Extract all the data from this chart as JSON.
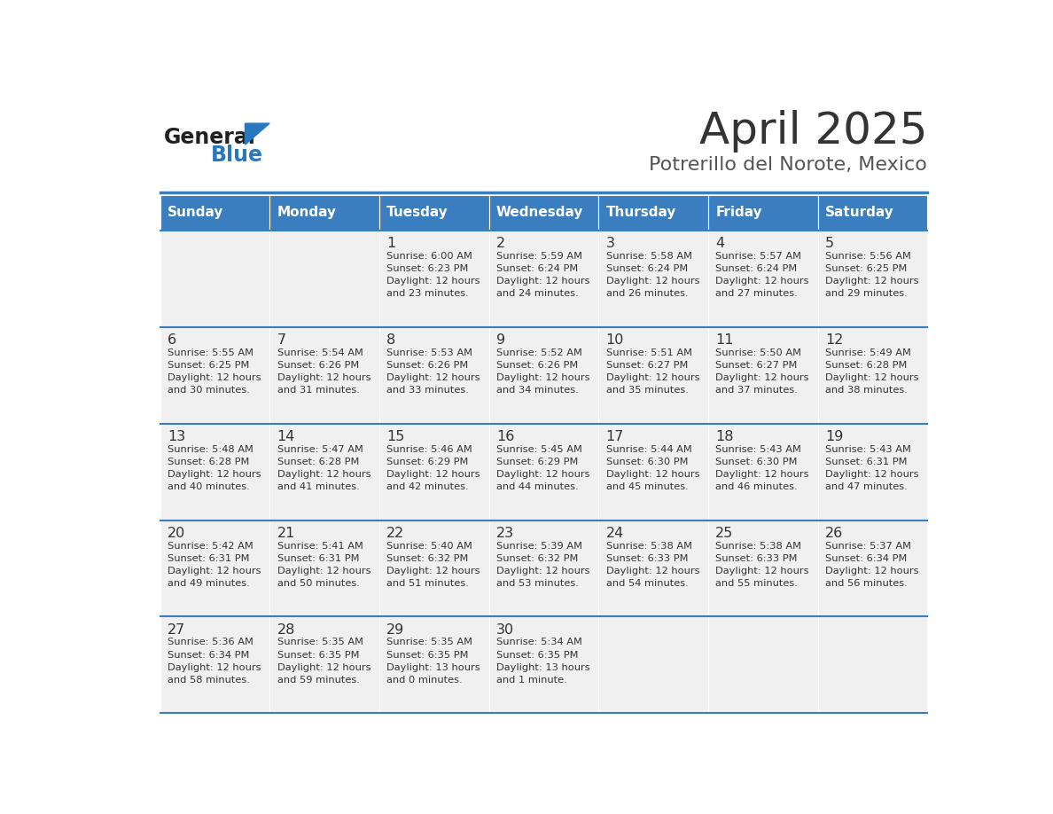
{
  "title": "April 2025",
  "subtitle": "Potrerillo del Norote, Mexico",
  "header_bg": "#3a7ebf",
  "header_text_color": "#ffffff",
  "cell_bg_light": "#f0f0f0",
  "day_names": [
    "Sunday",
    "Monday",
    "Tuesday",
    "Wednesday",
    "Thursday",
    "Friday",
    "Saturday"
  ],
  "title_color": "#333333",
  "subtitle_color": "#555555",
  "line_color": "#3a7ebf",
  "text_color": "#333333",
  "logo_general_color": "#222222",
  "logo_blue_color": "#2878c0",
  "weeks": [
    [
      {
        "day": null,
        "sunrise": null,
        "sunset": null,
        "daylight": null
      },
      {
        "day": null,
        "sunrise": null,
        "sunset": null,
        "daylight": null
      },
      {
        "day": 1,
        "sunrise": "6:00 AM",
        "sunset": "6:23 PM",
        "daylight": "12 hours\nand 23 minutes."
      },
      {
        "day": 2,
        "sunrise": "5:59 AM",
        "sunset": "6:24 PM",
        "daylight": "12 hours\nand 24 minutes."
      },
      {
        "day": 3,
        "sunrise": "5:58 AM",
        "sunset": "6:24 PM",
        "daylight": "12 hours\nand 26 minutes."
      },
      {
        "day": 4,
        "sunrise": "5:57 AM",
        "sunset": "6:24 PM",
        "daylight": "12 hours\nand 27 minutes."
      },
      {
        "day": 5,
        "sunrise": "5:56 AM",
        "sunset": "6:25 PM",
        "daylight": "12 hours\nand 29 minutes."
      }
    ],
    [
      {
        "day": 6,
        "sunrise": "5:55 AM",
        "sunset": "6:25 PM",
        "daylight": "12 hours\nand 30 minutes."
      },
      {
        "day": 7,
        "sunrise": "5:54 AM",
        "sunset": "6:26 PM",
        "daylight": "12 hours\nand 31 minutes."
      },
      {
        "day": 8,
        "sunrise": "5:53 AM",
        "sunset": "6:26 PM",
        "daylight": "12 hours\nand 33 minutes."
      },
      {
        "day": 9,
        "sunrise": "5:52 AM",
        "sunset": "6:26 PM",
        "daylight": "12 hours\nand 34 minutes."
      },
      {
        "day": 10,
        "sunrise": "5:51 AM",
        "sunset": "6:27 PM",
        "daylight": "12 hours\nand 35 minutes."
      },
      {
        "day": 11,
        "sunrise": "5:50 AM",
        "sunset": "6:27 PM",
        "daylight": "12 hours\nand 37 minutes."
      },
      {
        "day": 12,
        "sunrise": "5:49 AM",
        "sunset": "6:28 PM",
        "daylight": "12 hours\nand 38 minutes."
      }
    ],
    [
      {
        "day": 13,
        "sunrise": "5:48 AM",
        "sunset": "6:28 PM",
        "daylight": "12 hours\nand 40 minutes."
      },
      {
        "day": 14,
        "sunrise": "5:47 AM",
        "sunset": "6:28 PM",
        "daylight": "12 hours\nand 41 minutes."
      },
      {
        "day": 15,
        "sunrise": "5:46 AM",
        "sunset": "6:29 PM",
        "daylight": "12 hours\nand 42 minutes."
      },
      {
        "day": 16,
        "sunrise": "5:45 AM",
        "sunset": "6:29 PM",
        "daylight": "12 hours\nand 44 minutes."
      },
      {
        "day": 17,
        "sunrise": "5:44 AM",
        "sunset": "6:30 PM",
        "daylight": "12 hours\nand 45 minutes."
      },
      {
        "day": 18,
        "sunrise": "5:43 AM",
        "sunset": "6:30 PM",
        "daylight": "12 hours\nand 46 minutes."
      },
      {
        "day": 19,
        "sunrise": "5:43 AM",
        "sunset": "6:31 PM",
        "daylight": "12 hours\nand 47 minutes."
      }
    ],
    [
      {
        "day": 20,
        "sunrise": "5:42 AM",
        "sunset": "6:31 PM",
        "daylight": "12 hours\nand 49 minutes."
      },
      {
        "day": 21,
        "sunrise": "5:41 AM",
        "sunset": "6:31 PM",
        "daylight": "12 hours\nand 50 minutes."
      },
      {
        "day": 22,
        "sunrise": "5:40 AM",
        "sunset": "6:32 PM",
        "daylight": "12 hours\nand 51 minutes."
      },
      {
        "day": 23,
        "sunrise": "5:39 AM",
        "sunset": "6:32 PM",
        "daylight": "12 hours\nand 53 minutes."
      },
      {
        "day": 24,
        "sunrise": "5:38 AM",
        "sunset": "6:33 PM",
        "daylight": "12 hours\nand 54 minutes."
      },
      {
        "day": 25,
        "sunrise": "5:38 AM",
        "sunset": "6:33 PM",
        "daylight": "12 hours\nand 55 minutes."
      },
      {
        "day": 26,
        "sunrise": "5:37 AM",
        "sunset": "6:34 PM",
        "daylight": "12 hours\nand 56 minutes."
      }
    ],
    [
      {
        "day": 27,
        "sunrise": "5:36 AM",
        "sunset": "6:34 PM",
        "daylight": "12 hours\nand 58 minutes."
      },
      {
        "day": 28,
        "sunrise": "5:35 AM",
        "sunset": "6:35 PM",
        "daylight": "12 hours\nand 59 minutes."
      },
      {
        "day": 29,
        "sunrise": "5:35 AM",
        "sunset": "6:35 PM",
        "daylight": "13 hours\nand 0 minutes."
      },
      {
        "day": 30,
        "sunrise": "5:34 AM",
        "sunset": "6:35 PM",
        "daylight": "13 hours\nand 1 minute."
      },
      {
        "day": null,
        "sunrise": null,
        "sunset": null,
        "daylight": null
      },
      {
        "day": null,
        "sunrise": null,
        "sunset": null,
        "daylight": null
      },
      {
        "day": null,
        "sunrise": null,
        "sunset": null,
        "daylight": null
      }
    ]
  ]
}
